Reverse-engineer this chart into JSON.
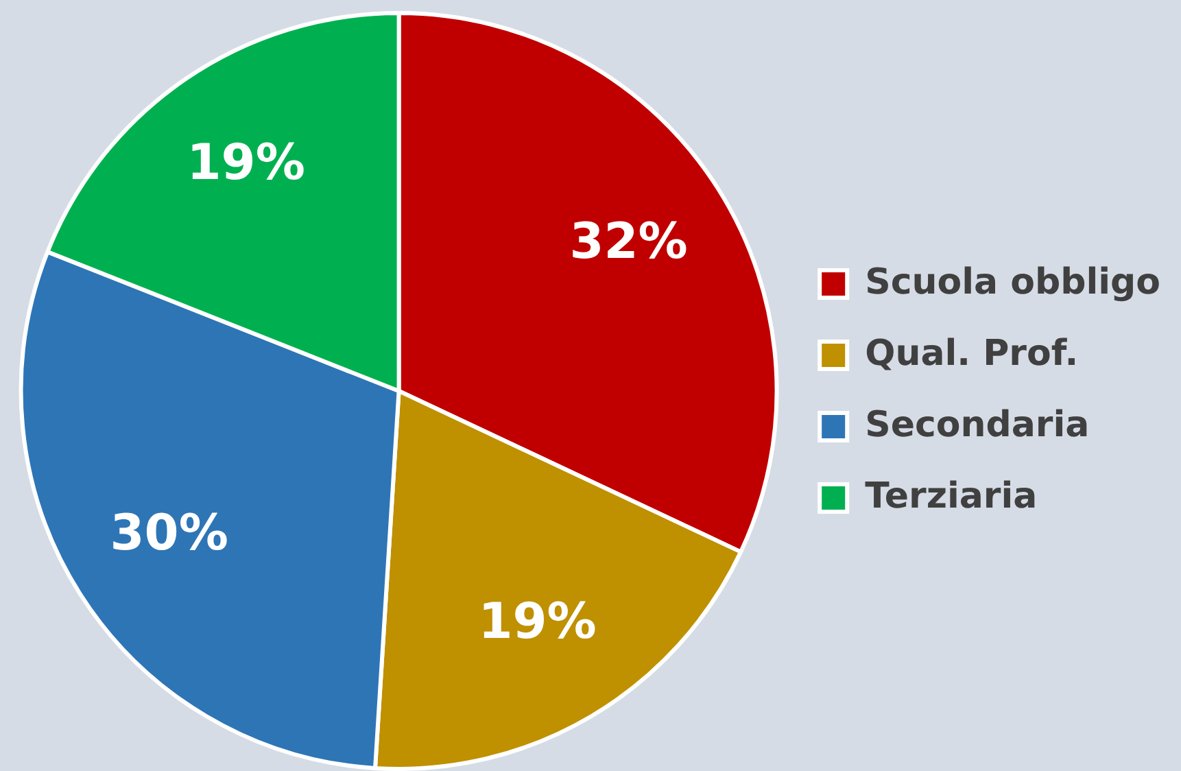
{
  "chart_data": {
    "type": "pie",
    "categories": [
      "Scuola obbligo",
      "Qual. Prof.",
      "Secondaria",
      "Terziaria"
    ],
    "values": [
      32,
      19,
      30,
      19
    ],
    "value_labels": [
      "32%",
      "19%",
      "30%",
      "19%"
    ],
    "colors": [
      "#c00000",
      "#bf9000",
      "#2e75b6",
      "#00b050"
    ],
    "legend": "right"
  }
}
